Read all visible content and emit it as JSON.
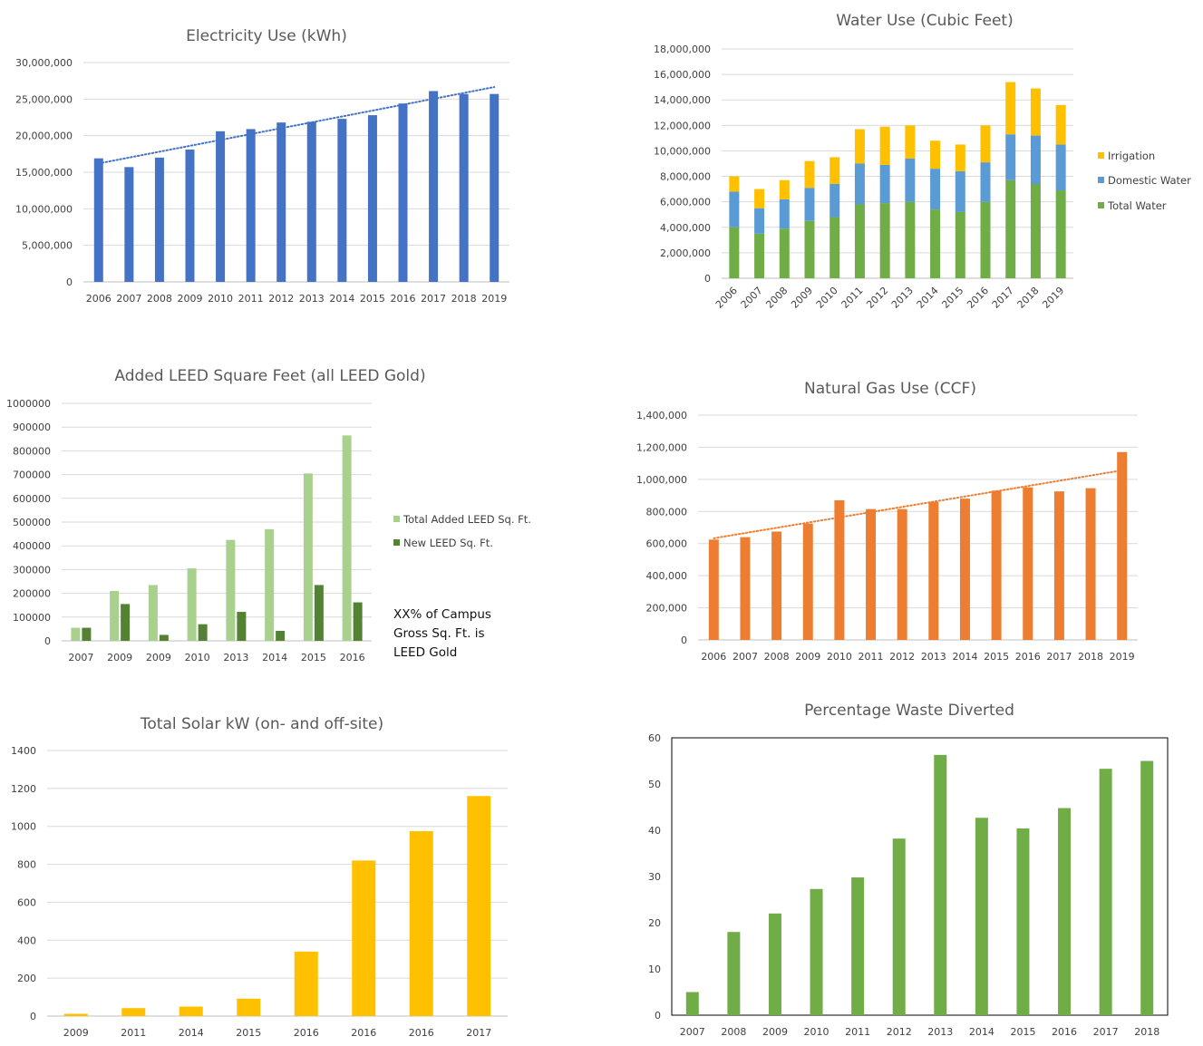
{
  "colors": {
    "electricity": "#4472c4",
    "irrigation": "#ffc000",
    "domestic": "#5b9bd5",
    "total_water": "#70ad47",
    "leed_total": "#a9d18e",
    "leed_new": "#548235",
    "gas": "#ed7d31",
    "solar": "#ffc000",
    "waste": "#70ad47"
  },
  "chart_data": [
    {
      "id": "electricity",
      "type": "bar",
      "title": "Electricity Use (kWh)",
      "categories": [
        "2006",
        "2007",
        "2008",
        "2009",
        "2010",
        "2011",
        "2012",
        "2013",
        "2014",
        "2015",
        "2016",
        "2017",
        "2018",
        "2019"
      ],
      "values": [
        16900000,
        15700000,
        17000000,
        18100000,
        20600000,
        20900000,
        21800000,
        21900000,
        22300000,
        22800000,
        24400000,
        26100000,
        25700000,
        25700000
      ],
      "trendline": "linear",
      "ylim": [
        0,
        30000000
      ],
      "yticks": [
        "0",
        "5,000,000",
        "10,000,000",
        "15,000,000",
        "20,000,000",
        "25,000,000",
        "30,000,000"
      ],
      "grid": true
    },
    {
      "id": "water",
      "type": "bar",
      "stacked": true,
      "title": "Water Use (Cubic Feet)",
      "categories": [
        "2006",
        "2007",
        "2008",
        "2009",
        "2010",
        "2011",
        "2012",
        "2013",
        "2014",
        "2015",
        "2016",
        "2017",
        "2018",
        "2019"
      ],
      "series": [
        {
          "name": "Total Water",
          "values": [
            4000000,
            3500000,
            3900000,
            4500000,
            4800000,
            5800000,
            5900000,
            6000000,
            5400000,
            5200000,
            6000000,
            7700000,
            7400000,
            6900000
          ]
        },
        {
          "name": "Domestic Water",
          "values": [
            2800000,
            2000000,
            2300000,
            2600000,
            2600000,
            3200000,
            3000000,
            3400000,
            3200000,
            3200000,
            3100000,
            3600000,
            3800000,
            3600000
          ]
        },
        {
          "name": "Irrigation",
          "values": [
            1200000,
            1500000,
            1500000,
            2100000,
            2100000,
            2700000,
            3000000,
            2600000,
            2200000,
            2100000,
            2900000,
            4100000,
            3700000,
            3100000
          ]
        }
      ],
      "legend_order": [
        "Irrigation",
        "Domestic Water",
        "Total Water"
      ],
      "legend": "right",
      "ylim": [
        0,
        18000000
      ],
      "yticks": [
        "0",
        "2,000,000",
        "4,000,000",
        "6,000,000",
        "8,000,000",
        "10,000,000",
        "12,000,000",
        "14,000,000",
        "16,000,000",
        "18,000,000"
      ],
      "grid": true
    },
    {
      "id": "leed",
      "type": "bar",
      "title": "Added LEED Square Feet (all LEED Gold)",
      "categories": [
        "2007",
        "2009",
        "2009",
        "2010",
        "2013",
        "2014",
        "2015",
        "2016"
      ],
      "series": [
        {
          "name": "Total Added LEED Sq. Ft.",
          "values": [
            55000,
            210000,
            235000,
            305000,
            425000,
            470000,
            705000,
            865000
          ]
        },
        {
          "name": "New LEED Sq. Ft.",
          "values": [
            55000,
            155000,
            25000,
            70000,
            122000,
            42000,
            235000,
            162000
          ]
        }
      ],
      "legend": "right",
      "ylim": [
        0,
        1000000
      ],
      "yticks": [
        "0",
        "100000",
        "200000",
        "300000",
        "400000",
        "500000",
        "600000",
        "700000",
        "800000",
        "900000",
        "1000000"
      ],
      "note": "XX% of Campus Gross Sq. Ft. is LEED Gold",
      "note_lines": [
        "XX% of Campus",
        "Gross Sq. Ft. is",
        "LEED Gold"
      ],
      "grid": true
    },
    {
      "id": "gas",
      "type": "bar",
      "title": "Natural Gas Use (CCF)",
      "categories": [
        "2006",
        "2007",
        "2008",
        "2009",
        "2010",
        "2011",
        "2012",
        "2013",
        "2014",
        "2015",
        "2016",
        "2017",
        "2018",
        "2019"
      ],
      "values": [
        625000,
        640000,
        675000,
        725000,
        870000,
        815000,
        815000,
        860000,
        880000,
        930000,
        950000,
        925000,
        945000,
        1170000
      ],
      "trendline": "linear",
      "ylim": [
        0,
        1400000
      ],
      "yticks": [
        "0",
        "200,000",
        "400,000",
        "600,000",
        "800,000",
        "1,000,000",
        "1,200,000",
        "1,400,000"
      ],
      "grid": true
    },
    {
      "id": "solar",
      "type": "bar",
      "title": "Total Solar kW (on- and off-site)",
      "categories": [
        "2009",
        "2011",
        "2014",
        "2015",
        "2016",
        "2016",
        "2016",
        "2017"
      ],
      "values": [
        12,
        42,
        50,
        92,
        340,
        820,
        975,
        1160
      ],
      "ylim": [
        0,
        1400
      ],
      "yticks": [
        "0",
        "200",
        "400",
        "600",
        "800",
        "1000",
        "1200",
        "1400"
      ],
      "grid": true
    },
    {
      "id": "waste",
      "type": "bar",
      "title": "Percentage Waste Diverted",
      "categories": [
        "2007",
        "2008",
        "2009",
        "2010",
        "2011",
        "2012",
        "2013",
        "2014",
        "2015",
        "2016",
        "2017",
        "2018"
      ],
      "values": [
        5,
        18,
        22,
        27.3,
        29.8,
        38.2,
        56.3,
        42.7,
        40.4,
        44.8,
        53.3,
        55
      ],
      "ylim": [
        0,
        60
      ],
      "yticks": [
        "0",
        "10",
        "20",
        "30",
        "40",
        "50",
        "60"
      ],
      "grid": false,
      "border": true
    }
  ]
}
